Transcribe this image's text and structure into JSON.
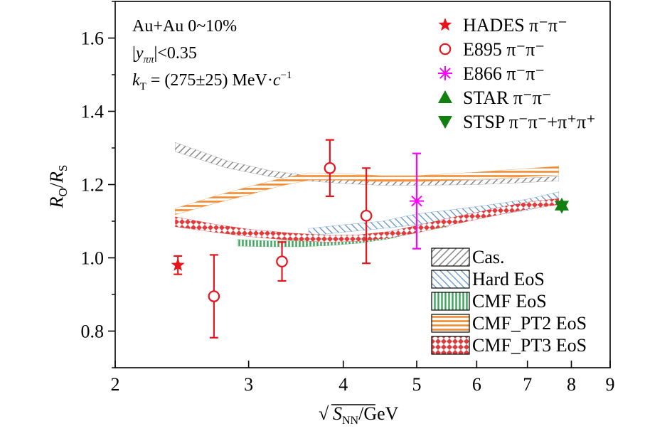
{
  "chart_data": {
    "type": "scatter",
    "xscale": "log",
    "xlim": [
      2,
      9
    ],
    "ylim": [
      0.7,
      1.7
    ],
    "x_ticks": [
      2,
      3,
      4,
      5,
      6,
      7,
      8,
      9
    ],
    "x_tick_labels": [
      "2",
      "3",
      "4",
      "5",
      "6",
      "7",
      "8",
      "9"
    ],
    "y_ticks": [
      0.8,
      1.0,
      1.2,
      1.4,
      1.6
    ],
    "y_tick_labels": [
      "0.8",
      "1.0",
      "1.2",
      "1.4",
      "1.6"
    ],
    "xlabel": {
      "sqrt": "√",
      "var": "S",
      "sub": "NN",
      "unit": "/GeV"
    },
    "ylabel": {
      "num": "R",
      "num_sub": "O",
      "slash": "/",
      "den": "R",
      "den_sub": "S"
    },
    "annotations": {
      "line1": "Au+Au 0~10%",
      "line2_open": "|",
      "line2_var": "y",
      "line2_sub": "ππ",
      "line2_close": "|<0.35",
      "line3_var": "k",
      "line3_sub": "T",
      "line3_mid": " = (275±25) MeV·",
      "line3_c": "c",
      "line3_exp": "−1"
    },
    "series": [
      {
        "name": "HADES π⁻π⁻",
        "marker": "star",
        "color": "#e8141b",
        "points": [
          {
            "x": 2.42,
            "y": 0.98,
            "err": 0.025
          }
        ]
      },
      {
        "name": "E895 π⁻π⁻",
        "marker": "circle-open",
        "color": "#e8141b",
        "points": [
          {
            "x": 2.7,
            "y": 0.895,
            "err": 0.113
          },
          {
            "x": 3.32,
            "y": 0.99,
            "err": 0.053
          },
          {
            "x": 3.84,
            "y": 1.245,
            "err": 0.077
          },
          {
            "x": 4.29,
            "y": 1.115,
            "err": 0.13
          }
        ]
      },
      {
        "name": "E866 π⁻π⁻",
        "marker": "asterisk",
        "color": "#ff00ff",
        "points": [
          {
            "x": 5.0,
            "y": 1.155,
            "err": 0.13
          }
        ]
      },
      {
        "name": "STAR π⁻π⁻",
        "marker": "triangle-up",
        "color": "#118011",
        "points": [
          {
            "x": 7.77,
            "y": 1.145,
            "err": 0
          }
        ]
      },
      {
        "name": "STSP π⁻π⁻+π⁺π⁺",
        "marker": "triangle-down",
        "color": "#118011",
        "points": [
          {
            "x": 7.77,
            "y": 1.14,
            "err": 0
          }
        ]
      }
    ],
    "bands": [
      {
        "name": "Cas.",
        "pattern": "cas",
        "color": "#888888",
        "x": [
          2.4,
          2.8,
          3.2,
          3.6,
          4.0,
          4.5,
          5.0,
          6.0,
          7.0,
          7.7
        ],
        "lower": [
          1.29,
          1.246,
          1.222,
          1.21,
          1.203,
          1.198,
          1.198,
          1.2,
          1.206,
          1.21
        ],
        "upper": [
          1.315,
          1.266,
          1.238,
          1.224,
          1.216,
          1.21,
          1.21,
          1.212,
          1.218,
          1.222
        ]
      },
      {
        "name": "Hard EoS",
        "pattern": "hard",
        "color": "#5b8fc9",
        "x": [
          3.6,
          4.0,
          4.5,
          5.0,
          5.5,
          6.0,
          6.5,
          7.0,
          7.7
        ],
        "lower": [
          1.06,
          1.07,
          1.08,
          1.09,
          1.1,
          1.11,
          1.12,
          1.13,
          1.15
        ],
        "upper": [
          1.08,
          1.09,
          1.1,
          1.12,
          1.13,
          1.14,
          1.15,
          1.16,
          1.18
        ]
      },
      {
        "name": "CMF EoS",
        "pattern": "cmf",
        "color": "#3aa55a",
        "x": [
          2.9,
          3.2,
          3.5,
          3.8,
          4.2,
          4.6,
          5.0,
          5.5
        ],
        "lower": [
          1.032,
          1.03,
          1.03,
          1.033,
          1.04,
          1.052,
          1.07,
          1.085
        ],
        "upper": [
          1.05,
          1.046,
          1.046,
          1.05,
          1.058,
          1.07,
          1.088,
          1.1
        ]
      },
      {
        "name": "CMF_PT2 EoS",
        "pattern": "pt2",
        "color": "#f28b30",
        "x": [
          2.4,
          2.7,
          3.0,
          3.3,
          3.6,
          4.0,
          4.5,
          5.0,
          6.0,
          7.0,
          7.7
        ],
        "lower": [
          1.118,
          1.148,
          1.172,
          1.196,
          1.212,
          1.212,
          1.208,
          1.208,
          1.214,
          1.222,
          1.226
        ],
        "upper": [
          1.135,
          1.168,
          1.194,
          1.216,
          1.232,
          1.23,
          1.224,
          1.224,
          1.234,
          1.244,
          1.25
        ]
      },
      {
        "name": "CMF_PT3 EoS",
        "pattern": "pt3",
        "color": "#e23a3a",
        "x": [
          2.4,
          2.7,
          3.0,
          3.4,
          3.8,
          4.2,
          4.6,
          5.0,
          5.5,
          6.0,
          6.5,
          7.0,
          7.7
        ],
        "lower": [
          1.085,
          1.07,
          1.058,
          1.048,
          1.043,
          1.045,
          1.055,
          1.068,
          1.088,
          1.105,
          1.12,
          1.133,
          1.145
        ],
        "upper": [
          1.112,
          1.092,
          1.078,
          1.068,
          1.062,
          1.063,
          1.072,
          1.088,
          1.108,
          1.124,
          1.14,
          1.152,
          1.162
        ]
      }
    ],
    "legend_position": "top-right"
  }
}
